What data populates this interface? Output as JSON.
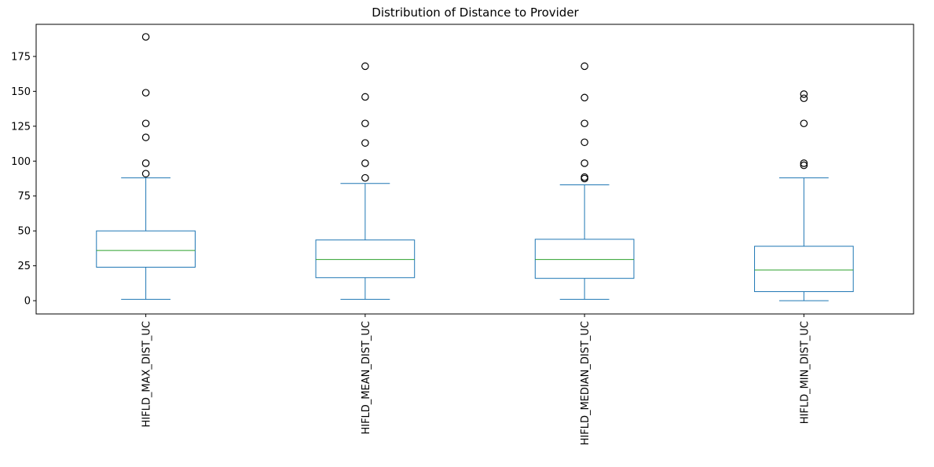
{
  "chart_data": {
    "type": "box",
    "title": "Distribution of Distance to Provider",
    "xlabel": "",
    "ylabel": "",
    "ylim": [
      -9.5,
      198
    ],
    "yticks": [
      0,
      25,
      50,
      75,
      100,
      125,
      150,
      175
    ],
    "grid": false,
    "categories": [
      "HIFLD_MAX_DIST_UC",
      "HIFLD_MEAN_DIST_UC",
      "HIFLD_MEDIAN_DIST_UC",
      "HIFLD_MIN_DIST_UC"
    ],
    "series": [
      {
        "whisker_low": 1,
        "q1": 24,
        "median": 36,
        "q3": 50,
        "whisker_high": 88,
        "outliers": [
          189,
          149,
          127,
          117,
          98.5,
          91
        ]
      },
      {
        "whisker_low": 1,
        "q1": 16.5,
        "median": 29.5,
        "q3": 43.5,
        "whisker_high": 84,
        "outliers": [
          168,
          146,
          127,
          113,
          98.5,
          88
        ]
      },
      {
        "whisker_low": 1,
        "q1": 16,
        "median": 29.5,
        "q3": 44,
        "whisker_high": 83,
        "outliers": [
          168,
          145.5,
          127,
          113.5,
          98.5,
          88.5,
          87.5
        ]
      },
      {
        "whisker_low": 0,
        "q1": 6.5,
        "median": 22,
        "q3": 39,
        "whisker_high": 88,
        "outliers": [
          148,
          145,
          127,
          98.5,
          97
        ]
      }
    ],
    "colors": {
      "box": "#1f77b4",
      "median": "#2ca02c",
      "outlier": "#000000",
      "axis": "#000000"
    }
  }
}
